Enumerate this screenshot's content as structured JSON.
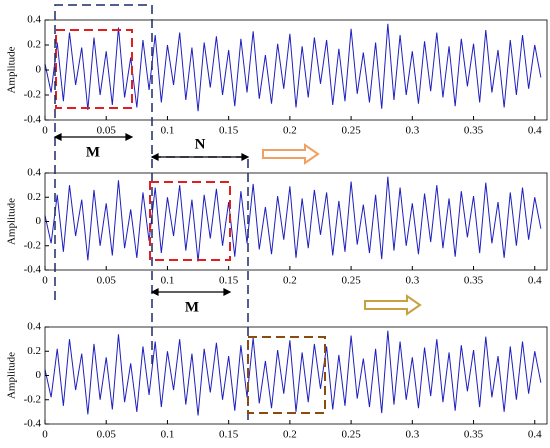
{
  "chart_data": [
    {
      "type": "line",
      "ylabel": "Amplitude",
      "color": "#1f1fbf",
      "xlim": [
        0,
        0.41
      ],
      "ylim": [
        -0.4,
        0.4
      ],
      "xticks": [
        0,
        0.05,
        0.1,
        0.15,
        0.2,
        0.25,
        0.3,
        0.35,
        0.4
      ],
      "yticks": [
        -0.4,
        -0.2,
        0,
        0.2,
        0.4
      ],
      "annotations": [
        "M",
        "N"
      ],
      "x": [
        0,
        0.005,
        0.01,
        0.015,
        0.02,
        0.025,
        0.03,
        0.035,
        0.04,
        0.045,
        0.05,
        0.055,
        0.06,
        0.065,
        0.07,
        0.075,
        0.08,
        0.085,
        0.09,
        0.095,
        0.1,
        0.105,
        0.11,
        0.115,
        0.12,
        0.125,
        0.13,
        0.135,
        0.14,
        0.145,
        0.15,
        0.155,
        0.16,
        0.165,
        0.17,
        0.175,
        0.18,
        0.185,
        0.19,
        0.195,
        0.2,
        0.205,
        0.21,
        0.215,
        0.22,
        0.225,
        0.23,
        0.235,
        0.24,
        0.245,
        0.25,
        0.255,
        0.26,
        0.265,
        0.27,
        0.275,
        0.28,
        0.285,
        0.29,
        0.295,
        0.3,
        0.305,
        0.31,
        0.315,
        0.32,
        0.325,
        0.33,
        0.335,
        0.34,
        0.345,
        0.35,
        0.355,
        0.36,
        0.365,
        0.37,
        0.375,
        0.38,
        0.385,
        0.39,
        0.395,
        0.4,
        0.405
      ],
      "values": [
        0.05,
        -0.18,
        0.22,
        -0.25,
        0.3,
        -0.12,
        0.18,
        -0.32,
        0.26,
        -0.2,
        0.15,
        -0.28,
        0.34,
        -0.22,
        0.1,
        -0.3,
        0.24,
        -0.16,
        0.28,
        -0.26,
        0.2,
        -0.12,
        0.3,
        -0.24,
        0.18,
        -0.33,
        0.22,
        -0.14,
        0.27,
        -0.2,
        0.16,
        -0.29,
        0.25,
        -0.18,
        0.31,
        -0.23,
        0.12,
        -0.27,
        0.21,
        -0.15,
        0.29,
        -0.3,
        0.19,
        -0.22,
        0.26,
        -0.11,
        0.24,
        -0.28,
        0.17,
        -0.25,
        0.33,
        -0.19,
        0.14,
        -0.26,
        0.22,
        -0.31,
        0.37,
        -0.24,
        0.28,
        -0.2,
        0.15,
        -0.27,
        0.23,
        -0.17,
        0.3,
        -0.22,
        0.19,
        -0.29,
        0.25,
        -0.13,
        0.21,
        -0.26,
        0.32,
        -0.18,
        0.16,
        -0.3,
        0.24,
        -0.2,
        0.28,
        -0.15,
        0.2,
        -0.06
      ]
    },
    {
      "type": "line",
      "ylabel": "Amplitude",
      "color": "#1f1fbf",
      "xlim": [
        0,
        0.41
      ],
      "ylim": [
        -0.4,
        0.4
      ],
      "xticks": [
        0,
        0.05,
        0.1,
        0.15,
        0.2,
        0.25,
        0.3,
        0.35,
        0.4
      ],
      "yticks": [
        -0.4,
        -0.2,
        0,
        0.2,
        0.4
      ],
      "annotations": [
        "M"
      ],
      "x": [
        0,
        0.005,
        0.01,
        0.015,
        0.02,
        0.025,
        0.03,
        0.035,
        0.04,
        0.045,
        0.05,
        0.055,
        0.06,
        0.065,
        0.07,
        0.075,
        0.08,
        0.085,
        0.09,
        0.095,
        0.1,
        0.105,
        0.11,
        0.115,
        0.12,
        0.125,
        0.13,
        0.135,
        0.14,
        0.145,
        0.15,
        0.155,
        0.16,
        0.165,
        0.17,
        0.175,
        0.18,
        0.185,
        0.19,
        0.195,
        0.2,
        0.205,
        0.21,
        0.215,
        0.22,
        0.225,
        0.23,
        0.235,
        0.24,
        0.245,
        0.25,
        0.255,
        0.26,
        0.265,
        0.27,
        0.275,
        0.28,
        0.285,
        0.29,
        0.295,
        0.3,
        0.305,
        0.31,
        0.315,
        0.32,
        0.325,
        0.33,
        0.335,
        0.34,
        0.345,
        0.35,
        0.355,
        0.36,
        0.365,
        0.37,
        0.375,
        0.38,
        0.385,
        0.39,
        0.395,
        0.4,
        0.405
      ],
      "values": [
        0.05,
        -0.18,
        0.22,
        -0.25,
        0.3,
        -0.12,
        0.18,
        -0.32,
        0.26,
        -0.2,
        0.15,
        -0.28,
        0.34,
        -0.22,
        0.1,
        -0.3,
        0.24,
        -0.16,
        0.28,
        -0.26,
        0.2,
        -0.12,
        0.3,
        -0.24,
        0.18,
        -0.33,
        0.22,
        -0.14,
        0.27,
        -0.2,
        0.16,
        -0.29,
        0.25,
        -0.18,
        0.31,
        -0.23,
        0.12,
        -0.27,
        0.21,
        -0.15,
        0.29,
        -0.3,
        0.19,
        -0.22,
        0.26,
        -0.11,
        0.24,
        -0.28,
        0.17,
        -0.25,
        0.33,
        -0.19,
        0.14,
        -0.26,
        0.22,
        -0.31,
        0.37,
        -0.24,
        0.28,
        -0.2,
        0.15,
        -0.27,
        0.23,
        -0.17,
        0.3,
        -0.22,
        0.19,
        -0.29,
        0.25,
        -0.13,
        0.21,
        -0.26,
        0.32,
        -0.18,
        0.16,
        -0.3,
        0.24,
        -0.2,
        0.28,
        -0.15,
        0.2,
        -0.06
      ]
    },
    {
      "type": "line",
      "ylabel": "Amplitude",
      "color": "#1f1fbf",
      "xlim": [
        0,
        0.41
      ],
      "ylim": [
        -0.4,
        0.4
      ],
      "xticks": [
        0,
        0.05,
        0.1,
        0.15,
        0.2,
        0.25,
        0.3,
        0.35,
        0.4
      ],
      "yticks": [
        -0.4,
        -0.2,
        0,
        0.2,
        0.4
      ],
      "x": [
        0,
        0.005,
        0.01,
        0.015,
        0.02,
        0.025,
        0.03,
        0.035,
        0.04,
        0.045,
        0.05,
        0.055,
        0.06,
        0.065,
        0.07,
        0.075,
        0.08,
        0.085,
        0.09,
        0.095,
        0.1,
        0.105,
        0.11,
        0.115,
        0.12,
        0.125,
        0.13,
        0.135,
        0.14,
        0.145,
        0.15,
        0.155,
        0.16,
        0.165,
        0.17,
        0.175,
        0.18,
        0.185,
        0.19,
        0.195,
        0.2,
        0.205,
        0.21,
        0.215,
        0.22,
        0.225,
        0.23,
        0.235,
        0.24,
        0.245,
        0.25,
        0.255,
        0.26,
        0.265,
        0.27,
        0.275,
        0.28,
        0.285,
        0.29,
        0.295,
        0.3,
        0.305,
        0.31,
        0.315,
        0.32,
        0.325,
        0.33,
        0.335,
        0.34,
        0.345,
        0.35,
        0.355,
        0.36,
        0.365,
        0.37,
        0.375,
        0.38,
        0.385,
        0.39,
        0.395,
        0.4,
        0.405
      ],
      "values": [
        0.05,
        -0.18,
        0.22,
        -0.25,
        0.3,
        -0.12,
        0.18,
        -0.32,
        0.26,
        -0.2,
        0.15,
        -0.28,
        0.34,
        -0.22,
        0.1,
        -0.3,
        0.24,
        -0.16,
        0.28,
        -0.26,
        0.2,
        -0.12,
        0.3,
        -0.24,
        0.18,
        -0.33,
        0.22,
        -0.14,
        0.27,
        -0.2,
        0.16,
        -0.29,
        0.25,
        -0.18,
        0.31,
        -0.23,
        0.12,
        -0.27,
        0.21,
        -0.15,
        0.29,
        -0.3,
        0.19,
        -0.22,
        0.26,
        -0.11,
        0.24,
        -0.28,
        0.17,
        -0.25,
        0.33,
        -0.19,
        0.14,
        -0.26,
        0.22,
        -0.31,
        0.37,
        -0.24,
        0.28,
        -0.2,
        0.15,
        -0.27,
        0.23,
        -0.17,
        0.3,
        -0.22,
        0.19,
        -0.29,
        0.25,
        -0.13,
        0.21,
        -0.26,
        0.32,
        -0.18,
        0.16,
        -0.3,
        0.24,
        -0.2,
        0.28,
        -0.15,
        0.2,
        -0.06
      ]
    }
  ]
}
